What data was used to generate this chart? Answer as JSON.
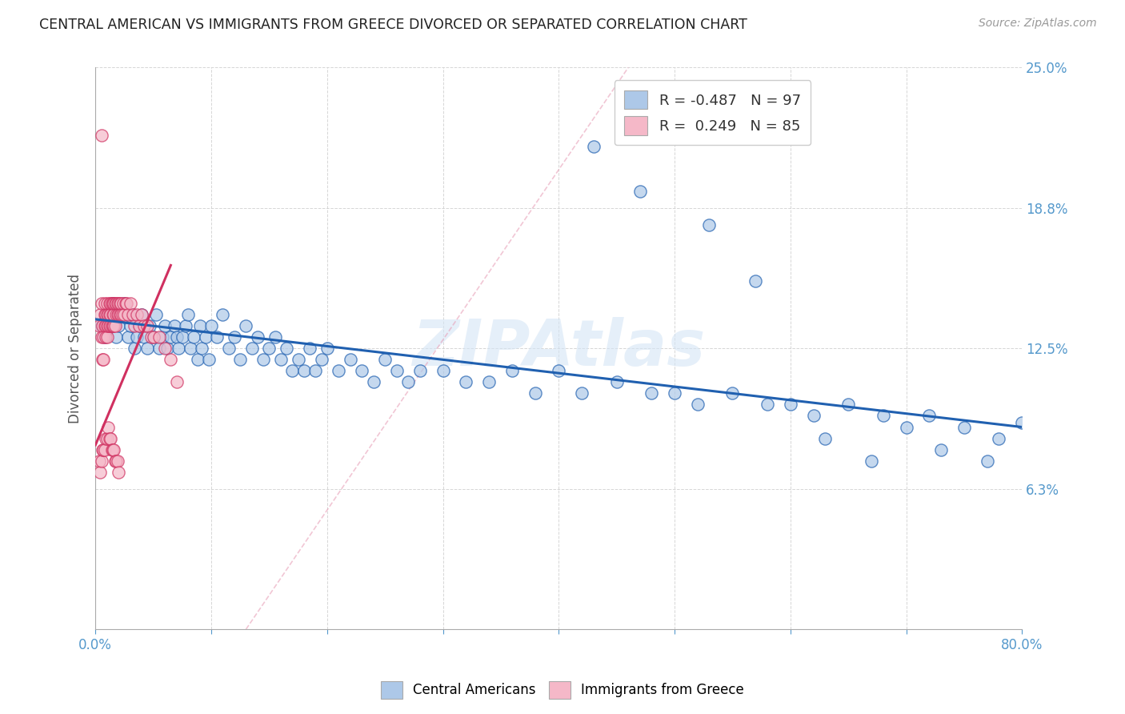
{
  "title": "CENTRAL AMERICAN VS IMMIGRANTS FROM GREECE DIVORCED OR SEPARATED CORRELATION CHART",
  "source": "Source: ZipAtlas.com",
  "ylabel": "Divorced or Separated",
  "xlim": [
    0.0,
    0.8
  ],
  "ylim": [
    0.0,
    0.25
  ],
  "blue_R": "-0.487",
  "blue_N": "97",
  "pink_R": "0.249",
  "pink_N": "85",
  "blue_color": "#adc8e8",
  "pink_color": "#f5b8c8",
  "blue_line_color": "#2060b0",
  "pink_line_color": "#d03060",
  "diagonal_line_color": "#e0b0c0",
  "watermark": "ZIPAtlas",
  "legend_label_blue": "Central Americans",
  "legend_label_pink": "Immigrants from Greece",
  "blue_scatter_x": [
    0.005,
    0.008,
    0.01,
    0.015,
    0.018,
    0.02,
    0.022,
    0.025,
    0.028,
    0.03,
    0.032,
    0.034,
    0.036,
    0.038,
    0.04,
    0.042,
    0.045,
    0.047,
    0.05,
    0.052,
    0.055,
    0.058,
    0.06,
    0.062,
    0.065,
    0.068,
    0.07,
    0.072,
    0.075,
    0.078,
    0.08,
    0.082,
    0.085,
    0.088,
    0.09,
    0.092,
    0.095,
    0.098,
    0.1,
    0.105,
    0.11,
    0.115,
    0.12,
    0.125,
    0.13,
    0.135,
    0.14,
    0.145,
    0.15,
    0.155,
    0.16,
    0.165,
    0.17,
    0.175,
    0.18,
    0.185,
    0.19,
    0.195,
    0.2,
    0.21,
    0.22,
    0.23,
    0.24,
    0.25,
    0.26,
    0.27,
    0.28,
    0.3,
    0.32,
    0.34,
    0.36,
    0.38,
    0.4,
    0.42,
    0.45,
    0.48,
    0.5,
    0.52,
    0.55,
    0.58,
    0.6,
    0.62,
    0.65,
    0.68,
    0.7,
    0.72,
    0.75,
    0.78,
    0.43,
    0.47,
    0.53,
    0.57,
    0.63,
    0.67,
    0.73,
    0.77,
    0.8
  ],
  "blue_scatter_y": [
    0.135,
    0.13,
    0.14,
    0.145,
    0.13,
    0.135,
    0.14,
    0.145,
    0.13,
    0.135,
    0.14,
    0.125,
    0.13,
    0.135,
    0.14,
    0.13,
    0.125,
    0.135,
    0.13,
    0.14,
    0.125,
    0.13,
    0.135,
    0.125,
    0.13,
    0.135,
    0.13,
    0.125,
    0.13,
    0.135,
    0.14,
    0.125,
    0.13,
    0.12,
    0.135,
    0.125,
    0.13,
    0.12,
    0.135,
    0.13,
    0.14,
    0.125,
    0.13,
    0.12,
    0.135,
    0.125,
    0.13,
    0.12,
    0.125,
    0.13,
    0.12,
    0.125,
    0.115,
    0.12,
    0.115,
    0.125,
    0.115,
    0.12,
    0.125,
    0.115,
    0.12,
    0.115,
    0.11,
    0.12,
    0.115,
    0.11,
    0.115,
    0.115,
    0.11,
    0.11,
    0.115,
    0.105,
    0.115,
    0.105,
    0.11,
    0.105,
    0.105,
    0.1,
    0.105,
    0.1,
    0.1,
    0.095,
    0.1,
    0.095,
    0.09,
    0.095,
    0.09,
    0.085,
    0.215,
    0.195,
    0.18,
    0.155,
    0.085,
    0.075,
    0.08,
    0.075,
    0.092
  ],
  "pink_scatter_x": [
    0.003,
    0.004,
    0.005,
    0.005,
    0.006,
    0.006,
    0.007,
    0.007,
    0.008,
    0.008,
    0.008,
    0.009,
    0.009,
    0.009,
    0.01,
    0.01,
    0.01,
    0.01,
    0.011,
    0.011,
    0.012,
    0.012,
    0.012,
    0.013,
    0.013,
    0.013,
    0.014,
    0.014,
    0.015,
    0.015,
    0.015,
    0.016,
    0.016,
    0.016,
    0.017,
    0.017,
    0.018,
    0.018,
    0.019,
    0.019,
    0.02,
    0.02,
    0.021,
    0.021,
    0.022,
    0.022,
    0.023,
    0.024,
    0.025,
    0.026,
    0.027,
    0.028,
    0.03,
    0.032,
    0.034,
    0.036,
    0.038,
    0.04,
    0.042,
    0.045,
    0.048,
    0.05,
    0.055,
    0.06,
    0.065,
    0.07,
    0.003,
    0.004,
    0.005,
    0.006,
    0.007,
    0.008,
    0.009,
    0.01,
    0.011,
    0.012,
    0.013,
    0.014,
    0.015,
    0.016,
    0.017,
    0.018,
    0.019,
    0.02,
    0.005
  ],
  "pink_scatter_y": [
    0.135,
    0.14,
    0.13,
    0.145,
    0.12,
    0.135,
    0.12,
    0.13,
    0.135,
    0.14,
    0.145,
    0.13,
    0.135,
    0.14,
    0.13,
    0.135,
    0.145,
    0.14,
    0.135,
    0.14,
    0.135,
    0.14,
    0.145,
    0.135,
    0.14,
    0.145,
    0.135,
    0.145,
    0.14,
    0.135,
    0.145,
    0.14,
    0.135,
    0.145,
    0.135,
    0.145,
    0.14,
    0.145,
    0.14,
    0.145,
    0.145,
    0.14,
    0.145,
    0.14,
    0.145,
    0.14,
    0.14,
    0.145,
    0.14,
    0.145,
    0.145,
    0.14,
    0.145,
    0.14,
    0.135,
    0.14,
    0.135,
    0.14,
    0.135,
    0.135,
    0.13,
    0.13,
    0.13,
    0.125,
    0.12,
    0.11,
    0.075,
    0.07,
    0.075,
    0.08,
    0.08,
    0.08,
    0.085,
    0.085,
    0.09,
    0.085,
    0.085,
    0.08,
    0.08,
    0.08,
    0.075,
    0.075,
    0.075,
    0.07,
    0.22
  ]
}
